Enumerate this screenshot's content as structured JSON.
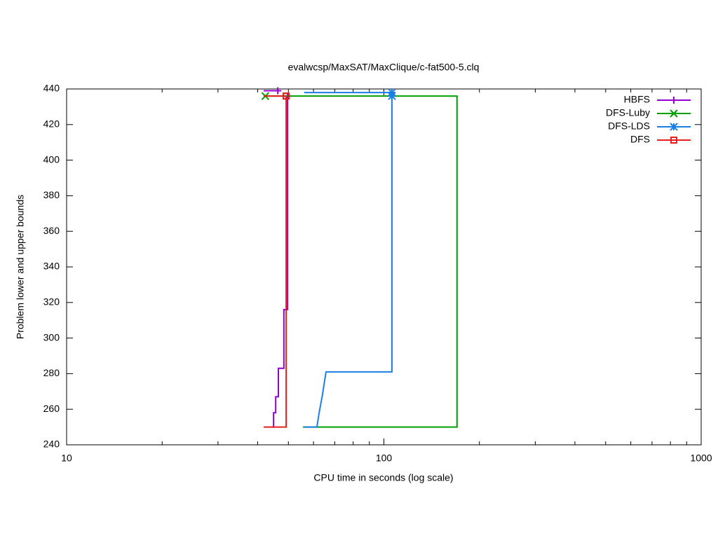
{
  "chart_data": {
    "type": "line",
    "title": "evalwcsp/MaxSAT/MaxClique/c-fat500-5.clq",
    "x_label": "CPU time in seconds (log scale)",
    "y_label": "Problem lower and upper bounds",
    "xscale": "log",
    "xlim": [
      10,
      1000
    ],
    "xticks": [
      10,
      100,
      1000
    ],
    "xminorticks": [
      20,
      30,
      40,
      50,
      60,
      70,
      80,
      90,
      200,
      300,
      400,
      500,
      600,
      700,
      800,
      900
    ],
    "ylim": [
      240,
      440
    ],
    "yticks": [
      240,
      260,
      280,
      300,
      320,
      340,
      360,
      380,
      400,
      420,
      440
    ],
    "legend": "top-right",
    "series": [
      {
        "name": "HBFS",
        "color": "#9400d3",
        "marker": "plus",
        "x": [
          44.4,
          44.9,
          44.9,
          45.6,
          45.6,
          46.5,
          46.5,
          48.4,
          48.4,
          49.7,
          49.7,
          null,
          41.8,
          46.3
        ],
        "values": [
          250,
          250,
          258,
          258,
          267,
          267,
          283,
          283,
          316,
          316,
          436,
          null,
          439,
          439
        ]
      },
      {
        "name": "DFS-Luby",
        "color": "#00a000",
        "marker": "cross",
        "x": [
          55.6,
          170,
          170,
          42.3
        ],
        "values": [
          250,
          250,
          436,
          436
        ]
      },
      {
        "name": "DFS-LDS",
        "color": "#1a7fe6",
        "marker": "star",
        "x": [
          56,
          61.5,
          62.5,
          64,
          65.7,
          106,
          106,
          null,
          56.1,
          106
        ],
        "values": [
          250,
          250,
          258,
          268,
          281,
          281,
          436,
          null,
          438,
          438
        ]
      },
      {
        "name": "DFS",
        "color": "#e5201a",
        "marker": "square",
        "x": [
          41.8,
          49.2,
          49.2,
          null,
          41.8,
          44.4,
          49.2
        ],
        "values": [
          250,
          250,
          436,
          null,
          436,
          436,
          436
        ]
      }
    ]
  }
}
